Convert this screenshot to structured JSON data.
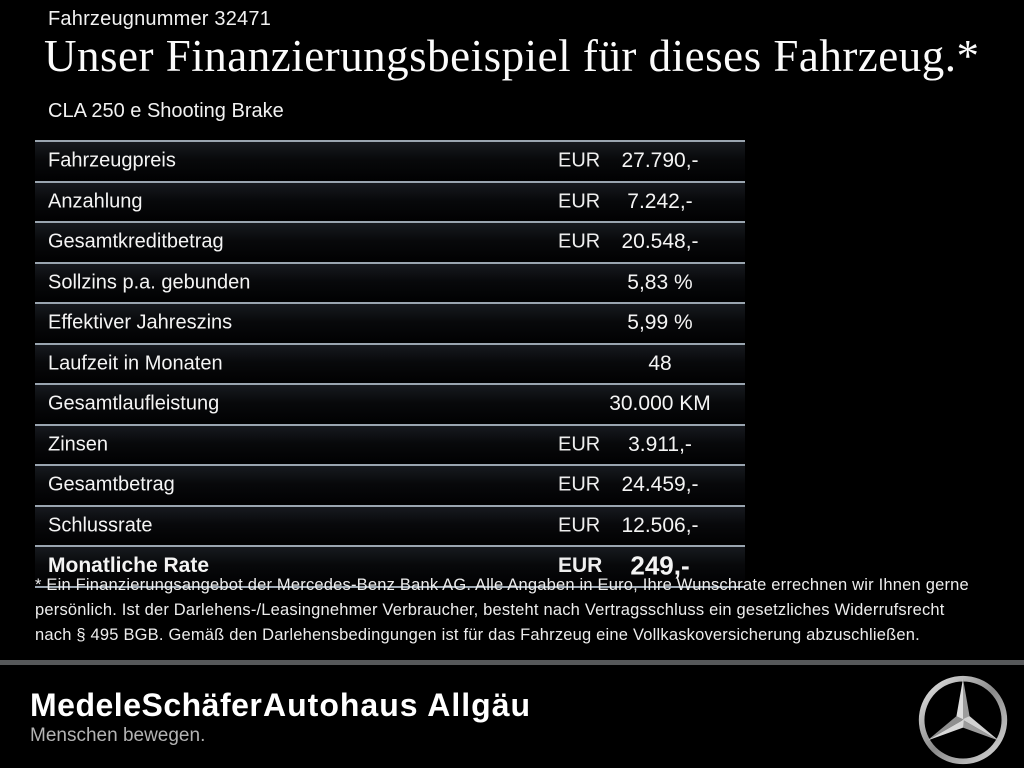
{
  "header": {
    "vehicle_number": "Fahrzeugnummer 32471",
    "title": "Unser Finanzierungsbeispiel für dieses Fahrzeug.*",
    "model": "CLA 250 e Shooting Brake"
  },
  "table": {
    "rows": [
      {
        "label": "Fahrzeugpreis",
        "currency": "EUR",
        "value": "27.790,-",
        "emphasis": false
      },
      {
        "label": "Anzahlung",
        "currency": "EUR",
        "value": "7.242,-",
        "emphasis": false
      },
      {
        "label": "Gesamtkreditbetrag",
        "currency": "EUR",
        "value": "20.548,-",
        "emphasis": false
      },
      {
        "label": "Sollzins p.a. gebunden",
        "currency": "",
        "value": "5,83 %",
        "emphasis": false
      },
      {
        "label": "Effektiver Jahreszins",
        "currency": "",
        "value": "5,99 %",
        "emphasis": false
      },
      {
        "label": "Laufzeit in Monaten",
        "currency": "",
        "value": "48",
        "emphasis": false
      },
      {
        "label": "Gesamtlaufleistung",
        "currency": "",
        "value": "30.000 KM",
        "emphasis": false
      },
      {
        "label": "Zinsen",
        "currency": "EUR",
        "value": "3.911,-",
        "emphasis": false
      },
      {
        "label": "Gesamtbetrag",
        "currency": "EUR",
        "value": "24.459,-",
        "emphasis": false
      },
      {
        "label": "Schlussrate",
        "currency": "EUR",
        "value": "12.506,-",
        "emphasis": false
      },
      {
        "label": "Monatliche Rate",
        "currency": "EUR",
        "value": "249,-",
        "emphasis": true
      }
    ]
  },
  "footnote": "* Ein Finanzierungsangebot der Mercedes-Benz Bank AG. Alle Angaben in Euro, Ihre Wunschrate errechnen wir Ihnen gerne persönlich. Ist der Darlehens-/Leasingnehmer Verbraucher, besteht nach Vertragsschluss ein gesetzliches Widerrufsrecht nach § 495 BGB. Gemäß den Darlehensbedingungen ist für das Fahrzeug eine Vollkaskoversicherung abzuschließen.",
  "footer": {
    "dealer_logo_text": "MedeleSchäfer",
    "dealer_name": "Autohaus Allgäu",
    "tagline": "Menschen bewegen.",
    "brand_icon": "mercedes-star-icon"
  },
  "colors": {
    "background": "#000000",
    "separator_line": "#9aa5b0",
    "footer_divider": "#56585a",
    "tagline_gray": "#b3b3b3"
  }
}
